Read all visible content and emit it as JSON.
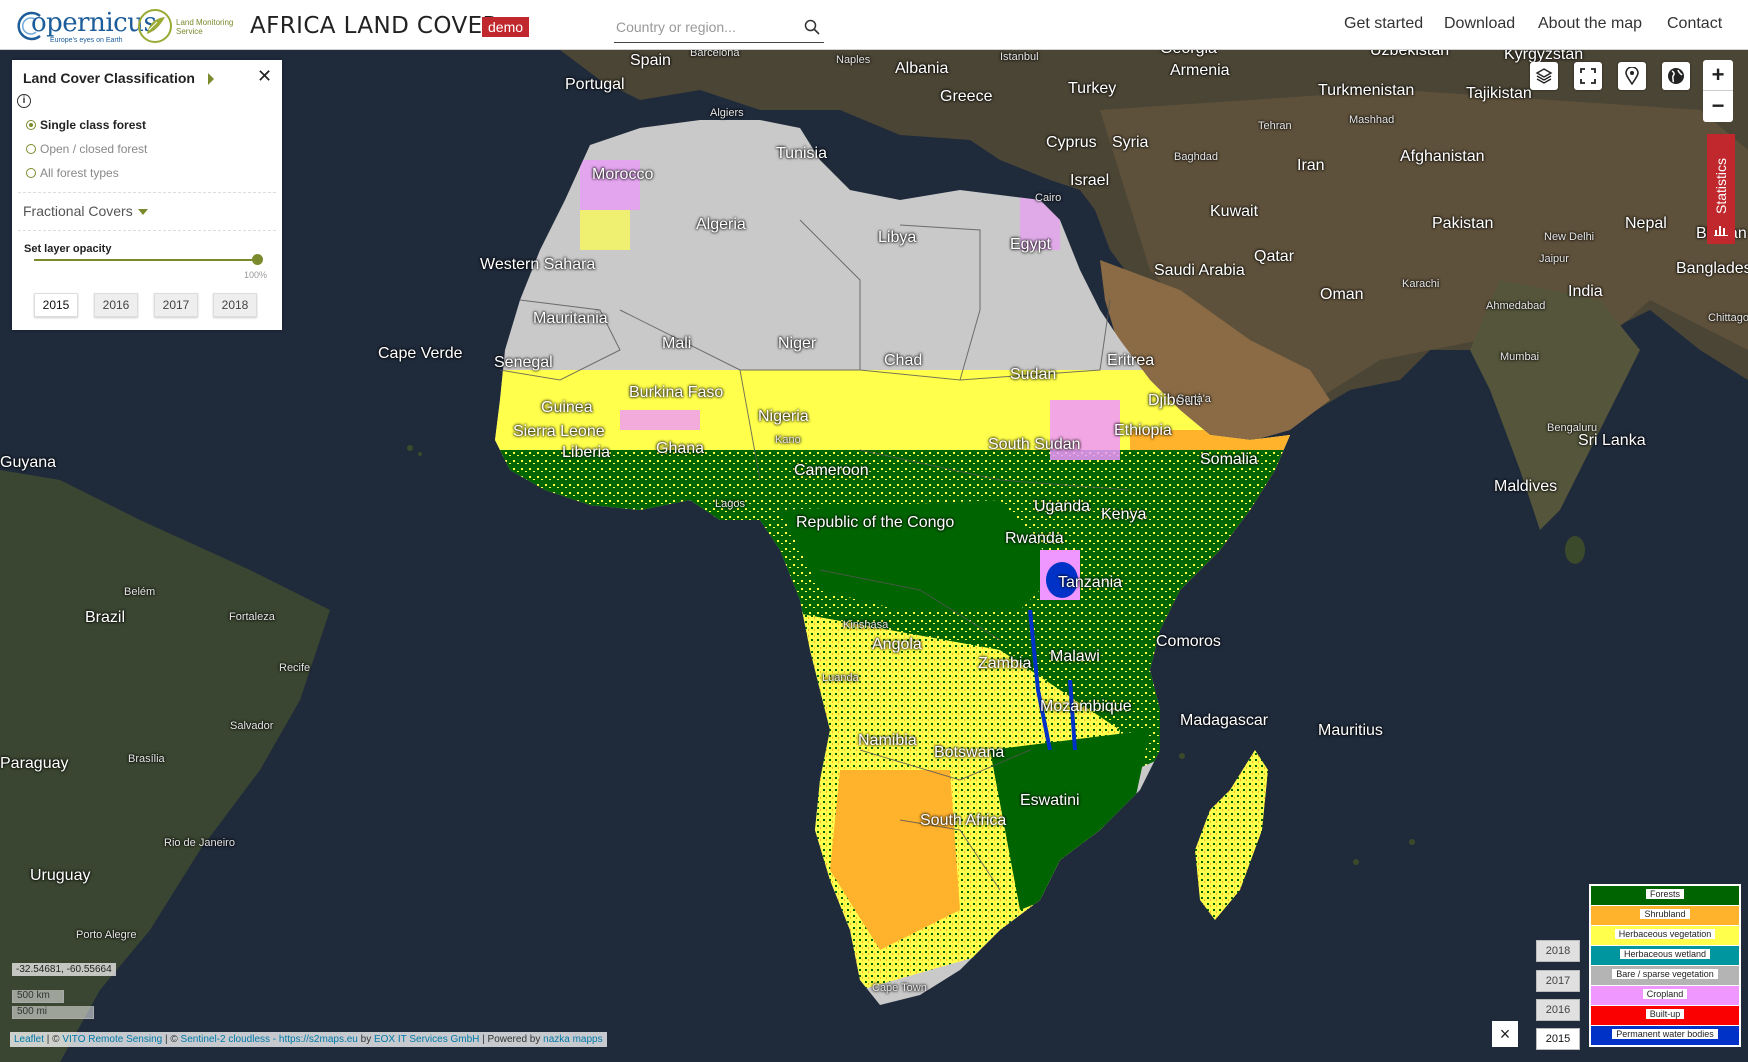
{
  "header": {
    "logo_copernicus": "opernicus",
    "logo_copernicus_tagline": "Europe's eyes on Earth",
    "logo_lms": "Land Monitoring Service",
    "title": "AFRICA LAND COVER",
    "badge": "demo",
    "search_placeholder": "Country or region...",
    "nav": [
      "Get started",
      "Download",
      "About the map",
      "Contact"
    ]
  },
  "panel": {
    "title": "Land Cover Classification",
    "options": [
      "Single class forest",
      "Open / closed forest",
      "All forest types"
    ],
    "selected_option": 0,
    "fractional": "Fractional Covers",
    "opacity_label": "Set layer opacity",
    "opacity_value": "100%",
    "opacity_fraction": 1.0,
    "years": [
      "2015",
      "2016",
      "2017",
      "2018"
    ],
    "active_year": "2015"
  },
  "map": {
    "countries": [
      "Spain",
      "Portugal",
      "Albania",
      "Greece",
      "Turkey",
      "Georgia",
      "Armenia",
      "Uzbekistan",
      "Kyrgyzstan",
      "Turkmenistan",
      "Tajikistan",
      "Cyprus",
      "Syria",
      "Israel",
      "Iran",
      "Afghanistan",
      "Kuwait",
      "Pakistan",
      "Nepal",
      "Bhutan",
      "Saudi Arabia",
      "Qatar",
      "Oman",
      "India",
      "Bangladesh",
      "Tunisia",
      "Morocco",
      "Algeria",
      "Libya",
      "Egypt",
      "Western Sahara",
      "Mauritania",
      "Mali",
      "Niger",
      "Chad",
      "Sudan",
      "Eritrea",
      "Djibouti",
      "Senegal",
      "Burkina Faso",
      "Guinea",
      "Sierra Leone",
      "Liberia",
      "Ghana",
      "Nigeria",
      "Cameroon",
      "South Sudan",
      "Ethiopia",
      "Somalia",
      "Uganda",
      "Kenya",
      "Rwanda",
      "Tanzania",
      "Republic of the Congo",
      "Angola",
      "Zambia",
      "Malawi",
      "Mozambique",
      "Madagascar",
      "Namibia",
      "Botswana",
      "Eswatini",
      "South Africa",
      "Comoros",
      "Cape Verde",
      "Sri Lanka",
      "Maldives",
      "Mauritius",
      "Guyana",
      "Brazil",
      "Paraguay",
      "Uruguay"
    ],
    "cities": [
      "Barcelona",
      "Naples",
      "Istanbul",
      "Algiers",
      "Tehran",
      "Mashhad",
      "Baghdad",
      "Cairo",
      "Karachi",
      "New Delhi",
      "Jaipur",
      "Ahmedabad",
      "Mumbai",
      "Chittagong",
      "Bengaluru",
      "Sana'a",
      "Kano",
      "Lagos",
      "Kinshasa",
      "Luanda",
      "Cape Town",
      "Belém",
      "Fortaleza",
      "Recife",
      "Salvador",
      "Brasília",
      "Rio de Janeiro",
      "Porto Alegre"
    ]
  },
  "controls": {
    "icons": [
      "layers-icon",
      "fullscreen-icon",
      "location-pin-icon",
      "globe-icon"
    ],
    "zoom_in": "+",
    "zoom_out": "−",
    "statistics": "Statistics"
  },
  "legend": [
    {
      "label": "Forests",
      "color": "#006400"
    },
    {
      "label": "Shrubland",
      "color": "#ffb22c"
    },
    {
      "label": "Herbaceous vegetation",
      "color": "#ffff4c"
    },
    {
      "label": "Herbaceous wetland",
      "color": "#0096a0"
    },
    {
      "label": "Bare / sparse vegetation",
      "color": "#b4b4b4"
    },
    {
      "label": "Cropland",
      "color": "#f096ff"
    },
    {
      "label": "Built-up",
      "color": "#fa0000"
    },
    {
      "label": "Permanent water bodies",
      "color": "#0032c8"
    }
  ],
  "timeline": {
    "years": [
      "2018",
      "2017",
      "2016",
      "2015"
    ],
    "active": "2015",
    "close": "×"
  },
  "coords": "-32.54681, -60.55664",
  "scale": {
    "km": "500 km",
    "mi": "500 mi"
  },
  "attribution": {
    "leaflet": "Leaflet",
    "sep1": " | © ",
    "vito": "VITO Remote Sensing",
    "sep2": " | © ",
    "s2": "Sentinel-2 cloudless - https://s2maps.eu",
    "by": " by ",
    "eox": "EOX IT Services GmbH",
    "powered": " | Powered by ",
    "nazka": "nazka mapps"
  }
}
